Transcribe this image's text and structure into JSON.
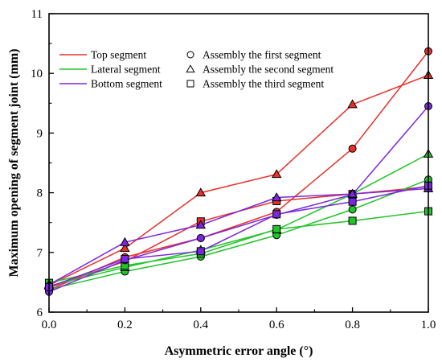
{
  "chart_data": {
    "type": "line",
    "xlabel": "Asymmetric error angle (°)",
    "ylabel": "Maximum opening of segment joint (mm)",
    "xlim": [
      0.0,
      1.0
    ],
    "ylim": [
      6,
      11
    ],
    "x_ticks": [
      "0.0",
      "0.2",
      "0.4",
      "0.6",
      "0.8",
      "1.0"
    ],
    "y_ticks": [
      "6",
      "7",
      "8",
      "9",
      "10",
      "11"
    ],
    "grid": false,
    "legend_position": "top-left",
    "x": [
      0.0,
      0.2,
      0.4,
      0.6,
      0.8,
      1.0
    ],
    "line_legend": [
      {
        "name": "Top segment",
        "color": "#e8302a"
      },
      {
        "name": "Lateral segment",
        "color": "#22c42a"
      },
      {
        "name": "Bottom segment",
        "color": "#7a28e0"
      }
    ],
    "marker_legend": [
      {
        "name": "Assembly the first segment",
        "marker": "circle"
      },
      {
        "name": "Assembly the second segment",
        "marker": "triangle"
      },
      {
        "name": "Assembly the third segment",
        "marker": "square"
      }
    ],
    "series": [
      {
        "segment": "Top segment",
        "assembly": "Assembly the first segment",
        "color": "#e8302a",
        "marker": "circle",
        "values": [
          6.37,
          6.92,
          7.24,
          7.68,
          8.74,
          10.37
        ]
      },
      {
        "segment": "Top segment",
        "assembly": "Assembly the second segment",
        "color": "#e8302a",
        "marker": "triangle",
        "values": [
          6.45,
          7.07,
          8.0,
          8.31,
          9.48,
          9.97
        ]
      },
      {
        "segment": "Top segment",
        "assembly": "Assembly the third segment",
        "color": "#e8302a",
        "marker": "square",
        "values": [
          6.41,
          6.85,
          7.52,
          7.86,
          7.98,
          8.1
        ]
      },
      {
        "segment": "Lateral segment",
        "assembly": "Assembly the first segment",
        "color": "#22c42a",
        "marker": "circle",
        "values": [
          6.38,
          6.68,
          6.93,
          7.29,
          7.72,
          8.22
        ]
      },
      {
        "segment": "Lateral segment",
        "assembly": "Assembly the second segment",
        "color": "#22c42a",
        "marker": "triangle",
        "values": [
          6.44,
          6.75,
          7.04,
          7.38,
          7.98,
          8.65
        ]
      },
      {
        "segment": "Lateral segment",
        "assembly": "Assembly the third segment",
        "color": "#22c42a",
        "marker": "square",
        "values": [
          6.49,
          6.78,
          6.98,
          7.39,
          7.53,
          7.69
        ]
      },
      {
        "segment": "Bottom segment",
        "assembly": "Assembly the first segment",
        "color": "#7a28e0",
        "marker": "circle",
        "values": [
          6.34,
          6.87,
          7.24,
          7.63,
          7.97,
          9.45
        ]
      },
      {
        "segment": "Bottom segment",
        "assembly": "Assembly the second segment",
        "color": "#7a28e0",
        "marker": "triangle",
        "values": [
          6.46,
          7.17,
          7.46,
          7.92,
          7.98,
          8.07
        ]
      },
      {
        "segment": "Bottom segment",
        "assembly": "Assembly the third segment",
        "color": "#7a28e0",
        "marker": "square",
        "values": [
          6.42,
          6.89,
          7.02,
          7.64,
          7.85,
          8.12
        ]
      }
    ]
  }
}
